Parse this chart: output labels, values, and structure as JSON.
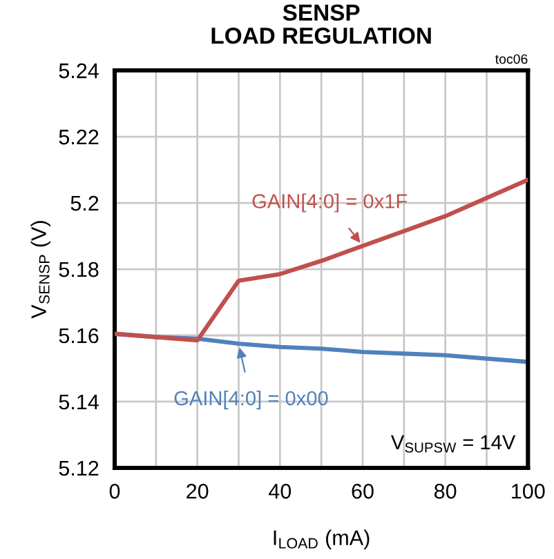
{
  "chart_data": {
    "type": "line",
    "title": "SENSP\nLOAD REGULATION",
    "xlabel": "I$_{LOAD}$ (mA)",
    "ylabel": "V$_{SENSP}$ (V)",
    "annotations": [
      "toc06",
      "V$_{SUPSW}$ = 14V"
    ],
    "series": [
      {
        "name": "GAIN[4:0] = 0x1F",
        "color": "#c0504d",
        "x": [
          0,
          20,
          30,
          40,
          50,
          60,
          70,
          80,
          90,
          100
        ],
        "values": [
          5.1605,
          5.1585,
          5.1765,
          5.1785,
          5.1825,
          5.187,
          5.1915,
          5.196,
          5.2015,
          5.207
        ]
      },
      {
        "name": "GAIN[4:0] = 0x00",
        "color": "#4f81bd",
        "x": [
          0,
          10,
          20,
          30,
          40,
          50,
          60,
          70,
          80,
          90,
          100
        ],
        "values": [
          5.1605,
          5.1595,
          5.159,
          5.1575,
          5.1565,
          5.156,
          5.155,
          5.1545,
          5.154,
          5.153,
          5.152
        ]
      }
    ],
    "xlim": [
      0,
      100
    ],
    "ylim": [
      5.12,
      5.24
    ],
    "xticks": [
      0,
      {
        "value": 10,
        "label": null
      },
      20,
      {
        "value": 30,
        "label": null
      },
      40,
      {
        "value": 50,
        "label": null
      },
      60,
      {
        "value": 70,
        "label": null
      },
      80,
      {
        "value": 90,
        "label": null
      },
      100
    ],
    "yticks": [
      5.12,
      5.14,
      5.16,
      5.18,
      5.2,
      5.22,
      5.24
    ],
    "grid": true,
    "legend": "center",
    "marker": "none",
    "line_style": "solid"
  }
}
